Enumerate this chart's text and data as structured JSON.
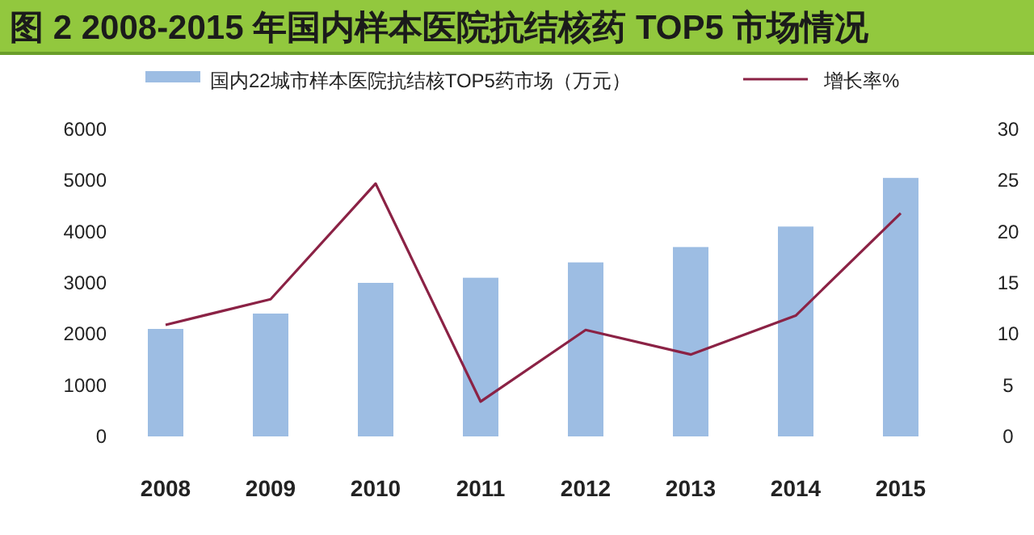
{
  "chart_data": {
    "type": "bar",
    "title": "图 2  2008-2015 年国内样本医院抗结核药 TOP5 市场情况",
    "categories": [
      "2008",
      "2009",
      "2010",
      "2011",
      "2012",
      "2013",
      "2014",
      "2015"
    ],
    "series": [
      {
        "name": "国内22城市样本医院抗结核TOP5药市场（万元）",
        "color": "#9dbde3",
        "values": [
          2100,
          2400,
          3000,
          3100,
          3400,
          3700,
          4100,
          5050
        ]
      },
      {
        "name": "增长率%",
        "type": "line",
        "axis": "y2",
        "color": "#8b2245",
        "values": [
          10.9,
          13.4,
          24.7,
          3.4,
          10.4,
          8.0,
          11.8,
          21.8
        ]
      }
    ],
    "ylim": [
      0,
      6000
    ],
    "yticks": [
      0,
      1000,
      2000,
      3000,
      4000,
      5000,
      6000
    ],
    "y2lim": [
      0,
      30
    ],
    "y2ticks": [
      0,
      5,
      10,
      15,
      20,
      25,
      30
    ],
    "legend": "top",
    "grid": false
  }
}
